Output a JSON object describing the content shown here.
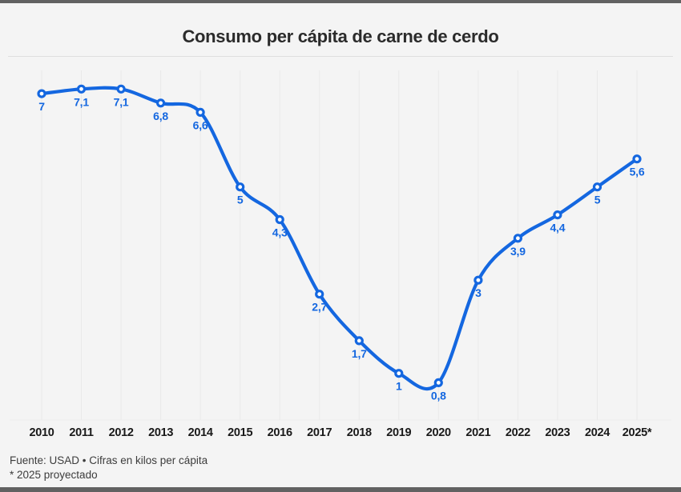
{
  "header": {
    "title": "Consumo per cápita de carne de cerdo"
  },
  "chart_data": {
    "type": "line",
    "title": "Consumo per cápita de carne de cerdo",
    "categories": [
      "2010",
      "2011",
      "2012",
      "2013",
      "2014",
      "2015",
      "2016",
      "2017",
      "2018",
      "2019",
      "2020",
      "2021",
      "2022",
      "2023",
      "2024",
      "2025*"
    ],
    "values": [
      7,
      7.1,
      7.1,
      6.8,
      6.6,
      5,
      4.3,
      2.7,
      1.7,
      1,
      0.8,
      3,
      3.9,
      4.4,
      5,
      5.6
    ],
    "point_labels": [
      "7",
      "7,1",
      "7,1",
      "6,8",
      "6,6",
      "5",
      "4,3",
      "2,7",
      "1,7",
      "1",
      "0,8",
      "3",
      "3,9",
      "4,4",
      "5",
      "5,6"
    ],
    "xlabel": "",
    "ylabel": "",
    "ylim": [
      0,
      7.5
    ],
    "grid": "vertical-only",
    "legend": "none",
    "line_color": "#1467e0",
    "marker_style": "open-circle",
    "unit": "kilos per cápita"
  },
  "footer": {
    "source": "Fuente: USAD • Cifras en kilos per cápita",
    "note": "* 2025 proyectado"
  },
  "colors": {
    "accent": "#1467e0",
    "background": "#f4f4f4",
    "frame_bar": "#616161",
    "grid_line": "#e9e9e9",
    "text_dark": "#191919",
    "text_muted": "#3c3c3c"
  }
}
